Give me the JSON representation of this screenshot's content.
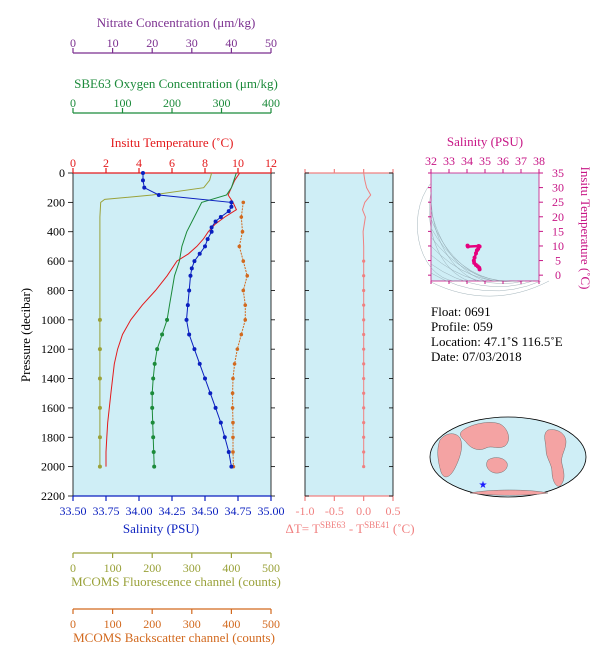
{
  "float_info": {
    "float": "Float:  0691",
    "profile": "Profile:  059",
    "location": "Location:  47.1˚S  116.5˚E",
    "date": "Date:  07/03/2018"
  },
  "colors": {
    "nitrate": "#7b2f8f",
    "oxygen": "#1b8a3a",
    "temperature": "#e31a1c",
    "salinity": "#0a1fbf",
    "fluorescence": "#9aa23a",
    "backscatter": "#d2691e",
    "delta_t": "#f08080",
    "ts_axis": "#c71585",
    "ts_points": "#e6007e",
    "panel_bg": "#cfeef6",
    "land": "#f4a3a3",
    "ocean": "#cfeef6"
  },
  "chart_data": [
    {
      "type": "line",
      "name": "main-profile",
      "ylabel": "Pressure (decibar)",
      "ylim": [
        2200,
        0
      ],
      "yticks": [
        0,
        200,
        400,
        600,
        800,
        1000,
        1200,
        1400,
        1600,
        1800,
        2000,
        2200
      ],
      "axes": {
        "nitrate": {
          "label": "Nitrate Concentration (μm/kg)",
          "range": [
            0,
            50
          ],
          "ticks": [
            0,
            10,
            20,
            30,
            40,
            50
          ]
        },
        "oxygen": {
          "label": "SBE63 Oxygen Concentration (μm/kg)",
          "range": [
            0,
            400
          ],
          "ticks": [
            0,
            100,
            200,
            300,
            400
          ]
        },
        "temperature": {
          "label": "Insitu Temperature (˚C)",
          "range": [
            0,
            12
          ],
          "ticks": [
            0,
            2,
            4,
            6,
            8,
            10,
            12
          ]
        },
        "salinity": {
          "label": "Salinity (PSU)",
          "range": [
            33.5,
            35.0
          ],
          "ticks": [
            "33.50",
            "33.75",
            "34.00",
            "34.25",
            "34.50",
            "34.75",
            "35.00"
          ]
        },
        "fluorescence": {
          "label": "MCOMS Fluorescence channel (counts)",
          "range": [
            0,
            500
          ],
          "ticks": [
            0,
            100,
            200,
            300,
            400,
            500
          ]
        },
        "backscatter": {
          "label": "MCOMS Backscatter channel (counts)",
          "range": [
            0,
            500
          ],
          "ticks": [
            0,
            100,
            200,
            300,
            400,
            500
          ]
        }
      },
      "series": [
        {
          "key": "temperature",
          "points": [
            [
              10.1,
              0
            ],
            [
              9.8,
              50
            ],
            [
              9.6,
              100
            ],
            [
              9.4,
              150
            ],
            [
              9.7,
              200
            ],
            [
              9.9,
              250
            ],
            [
              9.2,
              300
            ],
            [
              8.6,
              350
            ],
            [
              8.2,
              400
            ],
            [
              7.9,
              450
            ],
            [
              7.5,
              500
            ],
            [
              7.0,
              550
            ],
            [
              6.3,
              600
            ],
            [
              5.7,
              700
            ],
            [
              5.0,
              800
            ],
            [
              4.2,
              900
            ],
            [
              3.5,
              1000
            ],
            [
              3.0,
              1100
            ],
            [
              2.7,
              1200
            ],
            [
              2.5,
              1300
            ],
            [
              2.4,
              1400
            ],
            [
              2.3,
              1500
            ],
            [
              2.2,
              1600
            ],
            [
              2.1,
              1700
            ],
            [
              2.05,
              1800
            ],
            [
              2.0,
              1900
            ],
            [
              2.0,
              2000
            ]
          ]
        },
        {
          "key": "salinity",
          "markers": true,
          "points": [
            [
              34.03,
              0
            ],
            [
              34.03,
              50
            ],
            [
              34.04,
              100
            ],
            [
              34.15,
              150
            ],
            [
              34.7,
              200
            ],
            [
              34.7,
              230
            ],
            [
              34.68,
              260
            ],
            [
              34.62,
              300
            ],
            [
              34.58,
              330
            ],
            [
              34.55,
              370
            ],
            [
              34.55,
              400
            ],
            [
              34.52,
              450
            ],
            [
              34.5,
              500
            ],
            [
              34.46,
              550
            ],
            [
              34.42,
              600
            ],
            [
              34.4,
              650
            ],
            [
              34.39,
              700
            ],
            [
              34.38,
              800
            ],
            [
              34.37,
              900
            ],
            [
              34.36,
              1000
            ],
            [
              34.38,
              1100
            ],
            [
              34.42,
              1200
            ],
            [
              34.46,
              1300
            ],
            [
              34.5,
              1400
            ],
            [
              34.54,
              1500
            ],
            [
              34.58,
              1600
            ],
            [
              34.62,
              1700
            ],
            [
              34.65,
              1800
            ],
            [
              34.68,
              1900
            ],
            [
              34.7,
              2000
            ]
          ]
        },
        {
          "key": "oxygen",
          "points": [
            [
              330,
              0
            ],
            [
              325,
              50
            ],
            [
              320,
              100
            ],
            [
              310,
              150
            ],
            [
              260,
              200
            ],
            [
              245,
              300
            ],
            [
              230,
              400
            ],
            [
              220,
              500
            ],
            [
              215,
              600
            ],
            [
              205,
              700
            ],
            [
              200,
              800
            ],
            [
              195,
              900
            ],
            [
              190,
              1000
            ],
            [
              180,
              1100
            ],
            [
              170,
              1200
            ],
            [
              165,
              1300
            ],
            [
              162,
              1400
            ],
            [
              160,
              1500
            ],
            [
              160,
              1600
            ],
            [
              161,
              1700
            ],
            [
              162,
              1800
            ],
            [
              163,
              1900
            ],
            [
              164,
              2000
            ]
          ]
        },
        {
          "key": "fluorescence",
          "points": [
            [
              350,
              0
            ],
            [
              345,
              50
            ],
            [
              330,
              100
            ],
            [
              200,
              150
            ],
            [
              80,
              180
            ],
            [
              70,
              200
            ],
            [
              68,
              300
            ],
            [
              68,
              500
            ],
            [
              68,
              700
            ],
            [
              68,
              900
            ],
            [
              68,
              1000
            ],
            [
              68,
              1200
            ],
            [
              68,
              1400
            ],
            [
              68,
              1600
            ],
            [
              68,
              1800
            ],
            [
              68,
              2000
            ]
          ]
        },
        {
          "key": "backscatter",
          "points": [
            [
              430,
              200
            ],
            [
              425,
              300
            ],
            [
              428,
              400
            ],
            [
              420,
              500
            ],
            [
              430,
              600
            ],
            [
              440,
              700
            ],
            [
              430,
              800
            ],
            [
              435,
              900
            ],
            [
              435,
              1000
            ],
            [
              425,
              1100
            ],
            [
              415,
              1200
            ],
            [
              408,
              1300
            ],
            [
              404,
              1400
            ],
            [
              403,
              1500
            ],
            [
              403,
              1600
            ],
            [
              404,
              1700
            ],
            [
              404,
              1800
            ],
            [
              404,
              1900
            ],
            [
              405,
              2000
            ]
          ]
        }
      ]
    },
    {
      "type": "line",
      "name": "delta-t",
      "xlabel": "ΔT= T^SBE63 - T^SBE41 (˚C)",
      "xlim": [
        -1.0,
        0.5
      ],
      "xticks": [
        "-1.0",
        "-0.5",
        "0.0",
        "0.5"
      ],
      "points": [
        [
          0.0,
          0
        ],
        [
          0.02,
          50
        ],
        [
          0.05,
          100
        ],
        [
          0.12,
          150
        ],
        [
          0.02,
          200
        ],
        [
          -0.02,
          250
        ],
        [
          0.03,
          300
        ],
        [
          -0.01,
          400
        ],
        [
          0.0,
          500
        ],
        [
          0.0,
          600
        ],
        [
          0.0,
          700
        ],
        [
          0.0,
          800
        ],
        [
          0.0,
          900
        ],
        [
          0.0,
          1000
        ],
        [
          0.0,
          1100
        ],
        [
          0.0,
          1200
        ],
        [
          0.0,
          1300
        ],
        [
          0.0,
          1400
        ],
        [
          0.0,
          1500
        ],
        [
          0.0,
          1600
        ],
        [
          0.0,
          1700
        ],
        [
          0.0,
          1800
        ],
        [
          0.0,
          1900
        ],
        [
          0.0,
          2000
        ]
      ]
    },
    {
      "type": "scatter",
      "name": "ts-diagram",
      "xlabel": "Salinity (PSU)",
      "ylabel": "Insitu Temperature (˚C)",
      "xlim": [
        32,
        38
      ],
      "ylim": [
        -2,
        35
      ],
      "xticks": [
        32,
        33,
        34,
        35,
        36,
        37,
        38
      ],
      "yticks": [
        0,
        5,
        10,
        15,
        20,
        25,
        30,
        35
      ],
      "points": [
        [
          34.7,
          2.0
        ],
        [
          34.68,
          2.5
        ],
        [
          34.6,
          3.0
        ],
        [
          34.5,
          3.5
        ],
        [
          34.4,
          4.2
        ],
        [
          34.38,
          5.0
        ],
        [
          34.42,
          6.0
        ],
        [
          34.5,
          7.5
        ],
        [
          34.55,
          8.5
        ],
        [
          34.62,
          9.0
        ],
        [
          34.7,
          9.8
        ],
        [
          34.65,
          10.0
        ],
        [
          34.05,
          9.8
        ],
        [
          34.03,
          10.1
        ]
      ]
    }
  ]
}
